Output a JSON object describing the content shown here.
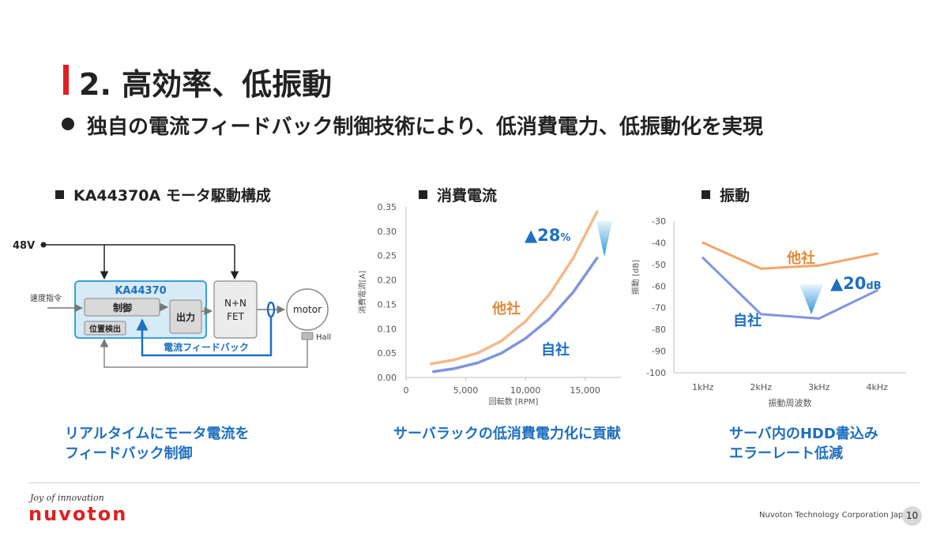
{
  "slide": {
    "title": "2. 高効率、低振動",
    "bullet": "独自の電流フィードバック制御技術により、低消費電力、低振動化を実現",
    "page_number": "10",
    "company": "Nuvoton Technology Corporation Japan",
    "slogan": "Joy of innovation",
    "logo_text": "nuvoton",
    "accent_color": "#e02020",
    "caption_color": "#1f6fc1"
  },
  "diagram": {
    "heading": "KA44370A モータ駆動構成",
    "voltage_label": "48V",
    "speed_cmd_label": "速度指令",
    "ic_label": "KA44370",
    "control_label": "制御",
    "position_label": "位置検出",
    "output_label": "出力",
    "fet_line1": "N+N",
    "fet_line2": "FET",
    "motor_label": "motor",
    "hall_label": "Hall",
    "feedback_label": "電流フィードバック",
    "caption_line1": "リアルタイムにモータ電流を",
    "caption_line2": "フィードバック制御"
  },
  "current_chart": {
    "heading": "消費電流",
    "caption": "サーバラックの低消費電力化に貢献",
    "improvement_prefix": "▲28",
    "improvement_unit": "%",
    "other_label": "他社",
    "own_label": "自社"
  },
  "vibration_chart": {
    "heading": "振動",
    "caption_line1": "サーバ内のHDD書込み",
    "caption_line2": "エラーレート低減",
    "improvement_prefix": "▲20",
    "improvement_unit": "dB",
    "other_label": "他社",
    "own_label": "自社"
  },
  "chart_data": [
    {
      "type": "line",
      "title": "消費電流",
      "xlabel": "回転数 [RPM]",
      "ylabel": "消費電流[A]",
      "xlim": [
        0,
        18000
      ],
      "ylim": [
        0,
        0.35
      ],
      "x_ticks": [
        0,
        5000,
        10000,
        15000
      ],
      "x_tick_labels": [
        "0",
        "5,000",
        "10,000",
        "15,000"
      ],
      "y_ticks": [
        0,
        0.05,
        0.1,
        0.15,
        0.2,
        0.25,
        0.3,
        0.35
      ],
      "y_tick_labels": [
        "0.00",
        "0.05",
        "0.10",
        "0.15",
        "0.20",
        "0.25",
        "0.30",
        "0.35"
      ],
      "grid": false,
      "series": [
        {
          "name": "他社",
          "color": "#f5b88a",
          "x": [
            2100,
            4000,
            6000,
            8000,
            10000,
            12000,
            14000,
            16000
          ],
          "y": [
            0.028,
            0.036,
            0.05,
            0.075,
            0.115,
            0.17,
            0.245,
            0.34
          ]
        },
        {
          "name": "自社",
          "color": "#7f95dc",
          "x": [
            2300,
            4000,
            6000,
            8000,
            10000,
            12000,
            14000,
            16000
          ],
          "y": [
            0.012,
            0.018,
            0.03,
            0.05,
            0.08,
            0.12,
            0.175,
            0.245
          ]
        }
      ]
    },
    {
      "type": "line",
      "title": "振動",
      "xlabel": "振動周波数",
      "ylabel": "振動 [dB]",
      "categories": [
        "1kHz",
        "2kHz",
        "3kHz",
        "4kHz"
      ],
      "ylim": [
        -100,
        -30
      ],
      "y_ticks": [
        -30,
        -40,
        -50,
        -60,
        -70,
        -80,
        -90,
        -100
      ],
      "y_tick_labels": [
        "-30",
        "-40",
        "-50",
        "-60",
        "-70",
        "-80",
        "-90",
        "-100"
      ],
      "grid": false,
      "series": [
        {
          "name": "他社",
          "color": "#f2a66b",
          "values": [
            -40,
            -52,
            -50.5,
            -45
          ]
        },
        {
          "name": "自社",
          "color": "#7f95dc",
          "values": [
            -47,
            -73,
            -75,
            -62
          ]
        }
      ]
    }
  ]
}
